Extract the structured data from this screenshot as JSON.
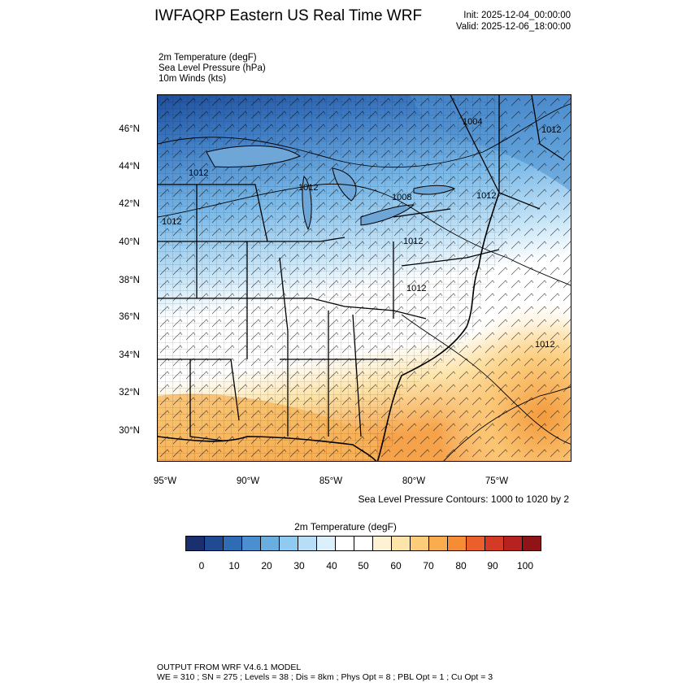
{
  "header": {
    "title": "IWFAQRP Eastern US Real Time WRF",
    "init": "Init: 2025-12-04_00:00:00",
    "valid": "Valid: 2025-12-06_18:00:00"
  },
  "fields": {
    "temp": "2m Temperature   (degF)",
    "slp": "Sea Level Pressure   (hPa)",
    "wind": "10m Winds   (kts)"
  },
  "map": {
    "lat_labels": [
      "46°N",
      "44°N",
      "42°N",
      "40°N",
      "38°N",
      "36°N",
      "34°N",
      "32°N",
      "30°N"
    ],
    "lon_labels": [
      "95°W",
      "90°W",
      "85°W",
      "80°W",
      "75°W"
    ],
    "pressure_labels": [
      "1004",
      "1012",
      "1012",
      "1012",
      "1008",
      "1012",
      "1012",
      "1012",
      "1012",
      "1012"
    ],
    "colors": {
      "very_cold": "#1f4f9a",
      "cold": "#4a90d0",
      "cool": "#9ccdf0",
      "mild": "#ffffff",
      "warm": "#fde3a8",
      "hot": "#f39a3c"
    }
  },
  "contour_note": "Sea Level Pressure Contours: 1000 to 1020 by 2",
  "colorbar": {
    "title": "2m Temperature  (degF)",
    "colors": [
      "#1b2f6e",
      "#204a91",
      "#2e6db4",
      "#4b8fd0",
      "#6aaee0",
      "#8fcaf0",
      "#b7def6",
      "#dcf0fb",
      "#ffffff",
      "#ffffff",
      "#fdf2d4",
      "#fde4a8",
      "#fccc7a",
      "#f9ad4f",
      "#f68d36",
      "#ea5f2b",
      "#d43a26",
      "#b5221f",
      "#8f1418"
    ],
    "labels": [
      "0",
      "10",
      "20",
      "30",
      "40",
      "50",
      "60",
      "70",
      "80",
      "90",
      "100"
    ]
  },
  "footer": {
    "line1": "OUTPUT FROM WRF V4.6.1 MODEL",
    "line2": "WE = 310 ; SN = 275 ; Levels = 38 ; Dis = 8km ; Phys Opt = 8 ; PBL Opt = 1 ; Cu Opt = 3"
  }
}
